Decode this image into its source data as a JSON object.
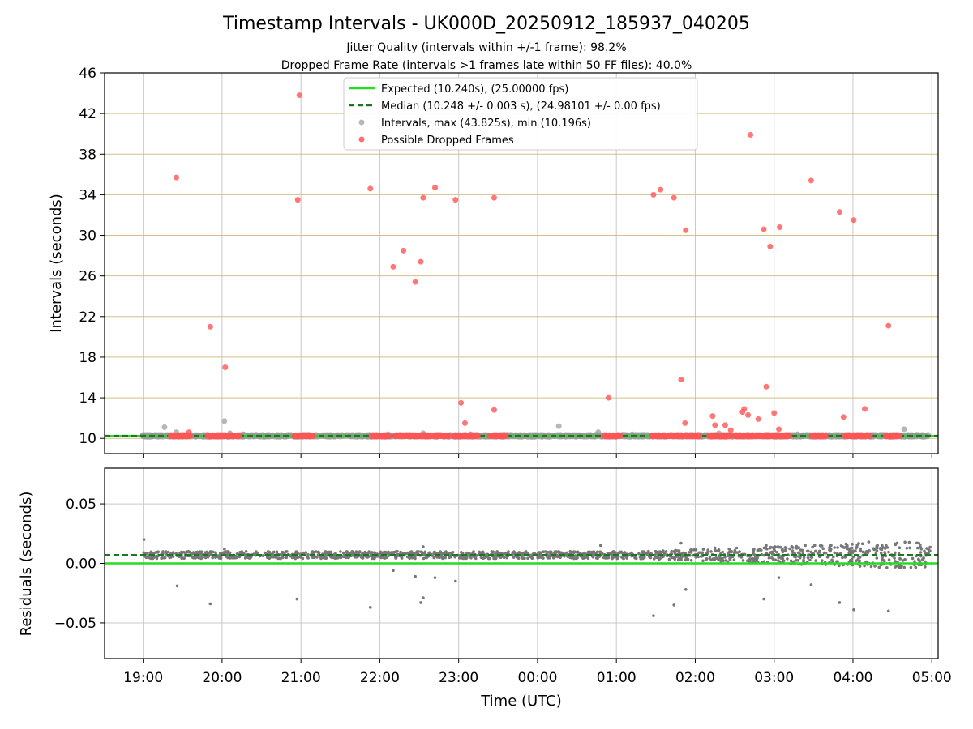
{
  "chart_data": [
    {
      "type": "scatter",
      "title": "Timestamp Intervals - UK000D_20250912_185937_040205",
      "subtitle_lines": [
        "Jitter Quality (intervals within +/-1 frame): 98.2%",
        "Dropped Frame Rate (intervals >1 frames late within 50 FF files): 40.0%"
      ],
      "xlabel": "",
      "ylabel": "Intervals (seconds)",
      "ylim": [
        8.5,
        46
      ],
      "yticks": [
        10,
        14,
        18,
        22,
        26,
        30,
        34,
        38,
        42,
        46
      ],
      "xlim_hours": [
        18.51,
        29.08
      ],
      "grid": true,
      "legend_position": "top-center",
      "legend": [
        "Expected (10.240s), (25.00000 fps)",
        "Median (10.248 +/- 0.003 s), (24.98101 +/- 0.00 fps)",
        "Intervals, max (43.825s), min (10.196s)",
        "Possible Dropped Frames"
      ],
      "colors": {
        "expected": "#22dd22",
        "median": "#1a7a1a",
        "intervals": "#999999",
        "dropped": "#ff5555",
        "hgrid": "#d4c080",
        "vgrid": "#c8c8c8"
      },
      "expected": 10.24,
      "median": 10.248,
      "series": [
        {
          "name": "Intervals, max (43.825s), min (10.196s)",
          "points": [
            [
              19.27,
              11.1
            ],
            [
              19.42,
              10.6
            ],
            [
              20.03,
              11.7
            ],
            [
              20.1,
              10.5
            ],
            [
              20.27,
              10.4
            ],
            [
              21.1,
              10.3
            ],
            [
              22.1,
              10.4
            ],
            [
              22.55,
              10.5
            ],
            [
              23.15,
              10.4
            ],
            [
              24.27,
              11.2
            ],
            [
              24.77,
              10.6
            ],
            [
              25.2,
              10.4
            ],
            [
              26.3,
              10.5
            ],
            [
              27.3,
              10.4
            ],
            [
              28.1,
              10.3
            ],
            [
              28.65,
              10.9
            ]
          ]
        },
        {
          "name": "Possible Dropped Frames",
          "points": [
            [
              19.42,
              35.7
            ],
            [
              19.58,
              10.6
            ],
            [
              19.85,
              21.0
            ],
            [
              20.04,
              17.0
            ],
            [
              20.96,
              33.5
            ],
            [
              20.98,
              43.8
            ],
            [
              21.88,
              34.6
            ],
            [
              22.17,
              26.9
            ],
            [
              22.3,
              28.5
            ],
            [
              22.45,
              25.4
            ],
            [
              22.52,
              27.4
            ],
            [
              22.55,
              33.7
            ],
            [
              22.7,
              34.7
            ],
            [
              22.96,
              33.5
            ],
            [
              23.03,
              13.5
            ],
            [
              23.08,
              11.5
            ],
            [
              23.45,
              12.8
            ],
            [
              23.45,
              33.7
            ],
            [
              24.9,
              14.0
            ],
            [
              25.47,
              34.0
            ],
            [
              25.56,
              34.5
            ],
            [
              25.73,
              33.7
            ],
            [
              25.82,
              15.8
            ],
            [
              25.87,
              11.5
            ],
            [
              25.88,
              30.5
            ],
            [
              26.22,
              12.2
            ],
            [
              26.25,
              11.3
            ],
            [
              26.38,
              11.3
            ],
            [
              26.45,
              10.8
            ],
            [
              26.6,
              12.6
            ],
            [
              26.62,
              12.9
            ],
            [
              26.67,
              12.3
            ],
            [
              26.7,
              39.9
            ],
            [
              26.8,
              11.9
            ],
            [
              26.87,
              30.6
            ],
            [
              26.9,
              15.1
            ],
            [
              26.95,
              28.9
            ],
            [
              27.0,
              12.5
            ],
            [
              27.06,
              10.9
            ],
            [
              27.07,
              30.8
            ],
            [
              27.47,
              35.4
            ],
            [
              27.83,
              32.3
            ],
            [
              27.88,
              12.1
            ],
            [
              28.01,
              31.5
            ],
            [
              28.15,
              12.9
            ],
            [
              28.45,
              21.1
            ]
          ]
        }
      ],
      "dropped_baseline_segments": [
        [
          19.35,
          19.6
        ],
        [
          19.82,
          20.22
        ],
        [
          20.92,
          21.15
        ],
        [
          21.9,
          22.12
        ],
        [
          22.2,
          22.4
        ],
        [
          22.42,
          22.65
        ],
        [
          22.68,
          22.88
        ],
        [
          22.95,
          23.25
        ],
        [
          23.4,
          23.6
        ],
        [
          24.85,
          25.05
        ],
        [
          25.45,
          25.7
        ],
        [
          25.72,
          25.85
        ],
        [
          25.88,
          26.05
        ],
        [
          26.18,
          26.45
        ],
        [
          26.5,
          26.62
        ],
        [
          26.65,
          27.2
        ],
        [
          27.48,
          27.65
        ],
        [
          27.9,
          28.22
        ],
        [
          28.42,
          28.6
        ]
      ]
    },
    {
      "type": "scatter",
      "title": "",
      "xlabel": "Time (UTC)",
      "ylabel": "Residuals (seconds)",
      "ylim": [
        -0.08,
        0.08
      ],
      "yticks": [
        -0.05,
        0.0,
        0.05
      ],
      "ytick_labels": [
        "−0.05",
        "0.00",
        "0.05"
      ],
      "xticks_hours": [
        19,
        20,
        21,
        22,
        23,
        24,
        25,
        26,
        27,
        28,
        29
      ],
      "xtick_labels": [
        "19:00",
        "20:00",
        "21:00",
        "22:00",
        "23:00",
        "00:00",
        "01:00",
        "02:00",
        "03:00",
        "04:00",
        "05:00"
      ],
      "xlim_hours": [
        18.51,
        29.08
      ],
      "grid": true,
      "expected_residual": 0.0,
      "median_residual": 0.007,
      "outliers": [
        [
          19.01,
          0.02
        ],
        [
          19.43,
          -0.019
        ],
        [
          19.85,
          -0.034
        ],
        [
          20.03,
          0.012
        ],
        [
          20.95,
          -0.03
        ],
        [
          21.88,
          -0.037
        ],
        [
          22.17,
          -0.006
        ],
        [
          22.45,
          -0.011
        ],
        [
          22.52,
          -0.033
        ],
        [
          22.55,
          -0.029
        ],
        [
          22.7,
          -0.012
        ],
        [
          22.96,
          -0.015
        ],
        [
          22.55,
          0.014
        ],
        [
          24.8,
          0.015
        ],
        [
          25.47,
          -0.044
        ],
        [
          25.73,
          -0.035
        ],
        [
          25.82,
          0.017
        ],
        [
          25.88,
          -0.022
        ],
        [
          26.87,
          -0.03
        ],
        [
          27.06,
          -0.012
        ],
        [
          27.47,
          -0.018
        ],
        [
          27.83,
          -0.033
        ],
        [
          28.01,
          -0.039
        ],
        [
          28.45,
          -0.04
        ],
        [
          26.25,
          0.013
        ],
        [
          26.9,
          0.015
        ],
        [
          28.2,
          0.018
        ]
      ]
    }
  ]
}
